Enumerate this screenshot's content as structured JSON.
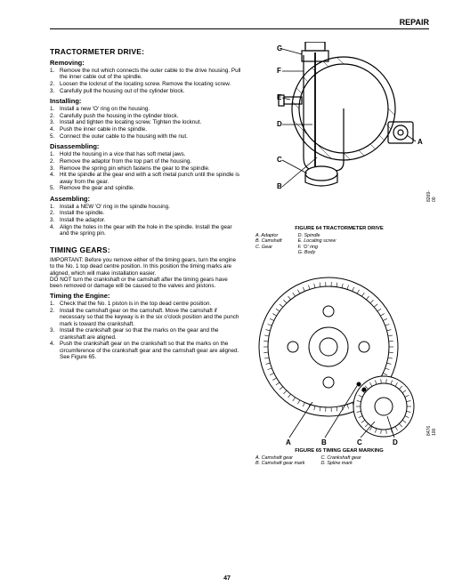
{
  "header": {
    "title": "REPAIR"
  },
  "page_number": "47",
  "section1": {
    "title": "TRACTORMETER DRIVE:",
    "removing": {
      "heading": "Removing:",
      "steps": [
        "Remove the nut which connects the outer cable to the drive housing.\nPull the inner cable out of the spindle.",
        "Loosen the locknut of the locating screw. Remove the locating screw.",
        "Carefully pull the housing out of the cylinder block."
      ]
    },
    "installing": {
      "heading": "Installing:",
      "steps": [
        "Install a new 'O' ring on the housing.",
        "Carefully push the housing in the cylinder block.",
        "Install and tighten the locating screw. Tighten the locknut.",
        "Push the inner cable in the spindle.",
        "Connect the outer cable to the housing with the nut."
      ]
    },
    "disassembling": {
      "heading": "Disassembling:",
      "steps": [
        "Hold the housing in a vice that has soft metal jaws.",
        "Remove the adaptor from the top part of the housing.",
        "Remove the spring pin which fastens the gear to the spindle.",
        "Hit the spindle at the gear end with a soft metal punch until the spindle is away from the gear.",
        "Remove the gear and spindle."
      ]
    },
    "assembling": {
      "heading": "Assembling:",
      "steps": [
        "Install a NEW 'O' ring in the spindle housing.",
        "Install the spindle.",
        "Install the adaptor.",
        "Align the holes in the gear with the hole in the spindle.\nInstall the gear and the spring pin."
      ]
    }
  },
  "section2": {
    "title": "TIMING GEARS:",
    "important": "IMPORTANT: Before you remove either of the timing gears, turn the engine to the No. 1 top dead centre position. In this position the timing marks are aligned, which will make installation easier.\nDO NOT turn the crankshaft or the camshaft after the timing gears have been removed or damage will be caused to the valves and pistons.",
    "timing": {
      "heading": "Timing the Engine:",
      "steps": [
        "Check that the No. 1 piston is in the top dead centre position.",
        "Install the camshaft gear on the camshaft. Move the camshaft if necessary so that the keyway is in the six o'clock position and the punch mark is toward the crankshaft.",
        "Install the crankshaft gear so that the marks on the gear and the crankshaft are aligned.",
        "Push the crankshaft gear on the crankshaft so that the marks on the circumference of the crankshaft gear and the camshaft gear are aligned.\nSee Figure 65."
      ]
    }
  },
  "figure64": {
    "caption": "FIGURE 64   TRACTORMETER DRIVE",
    "side_ref": "8269-00",
    "callouts": [
      "A",
      "B",
      "C",
      "D",
      "E",
      "F",
      "G"
    ],
    "legend_left": "A. Adaptor\nB. Camshaft\nC. Gear",
    "legend_right": "D. Spindle\nE. Locating screw\nF. 'O' ring\nG. Body",
    "colors": {
      "line": "#000000",
      "fill": "#ffffff",
      "hatch": "#000000"
    }
  },
  "figure65": {
    "caption": "FIGURE 65   TIMING GEAR MARKING",
    "side_ref": "8476 100",
    "callouts": [
      "A",
      "B",
      "C",
      "D"
    ],
    "legend_left": "A. Camshaft gear\nB. Camshaft gear mark",
    "legend_right": "C. Crankshaft gear\nD. Spline mark",
    "colors": {
      "line": "#000000",
      "gear_fill": "#ffffff",
      "teeth": "#000000"
    }
  }
}
